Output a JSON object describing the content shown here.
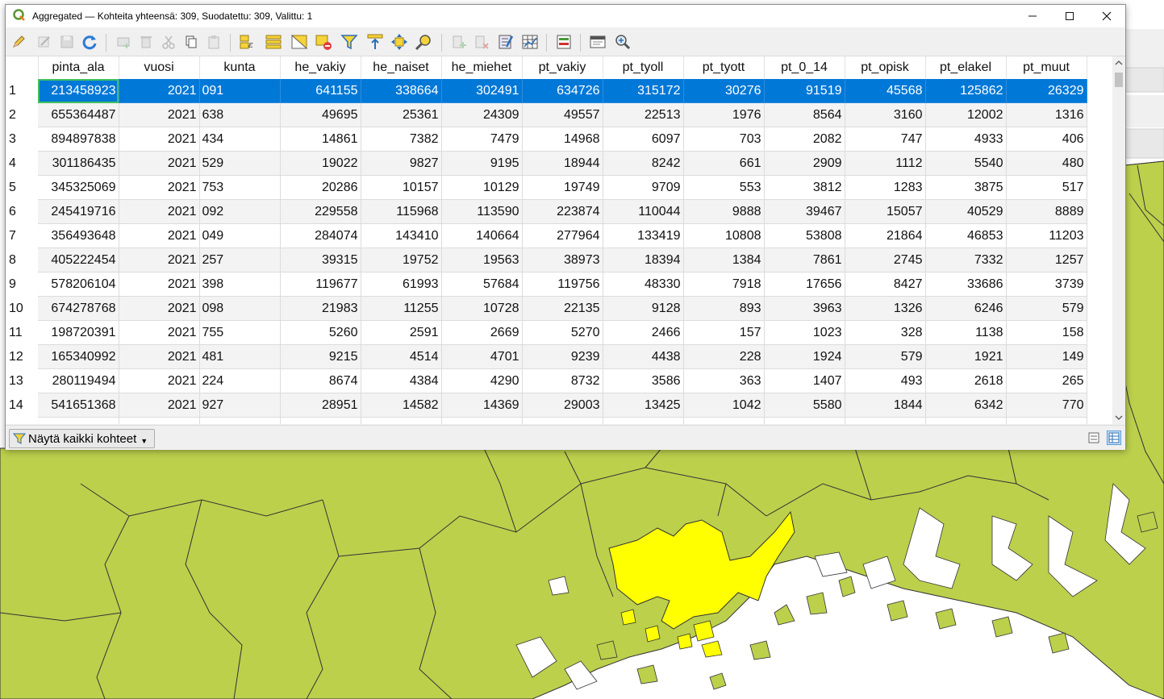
{
  "window": {
    "title": "Aggregated — Kohteita yhteensä: 309, Suodatettu: 309, Valittu: 1",
    "minimize_icon": "minimize-icon",
    "maximize_icon": "maximize-icon",
    "close_icon": "close-icon"
  },
  "toolbar": {
    "icons": [
      "pencil-edit-icon",
      "multi-edit-icon",
      "save-edits-icon",
      "reload-icon",
      "add-feature-icon",
      "delete-feature-icon",
      "cut-icon",
      "copy-icon",
      "paste-icon",
      "expression-select-icon",
      "select-all-icon",
      "invert-selection-icon",
      "deselect-icon",
      "filter-select-icon",
      "move-selection-top-icon",
      "pan-to-selected-icon",
      "zoom-to-selected-icon",
      "new-field-icon",
      "delete-field-icon",
      "field-calculator-icon",
      "conditional-format-icon",
      "actions-icon",
      "dock-icon",
      "zoom-icon"
    ]
  },
  "table": {
    "columns": [
      "pinta_ala",
      "vuosi",
      "kunta",
      "he_vakiy",
      "he_naiset",
      "he_miehet",
      "pt_vakiy",
      "pt_tyoll",
      "pt_tyott",
      "pt_0_14",
      "pt_opisk",
      "pt_elakel",
      "pt_muut"
    ],
    "rows": [
      {
        "id": "1",
        "cells": [
          "213458923",
          "2021",
          "091",
          "641155",
          "338664",
          "302491",
          "634726",
          "315172",
          "30276",
          "91519",
          "45568",
          "125862",
          "26329"
        ]
      },
      {
        "id": "2",
        "cells": [
          "655364487",
          "2021",
          "638",
          "49695",
          "25361",
          "24309",
          "49557",
          "22513",
          "1976",
          "8564",
          "3160",
          "12002",
          "1316"
        ]
      },
      {
        "id": "3",
        "cells": [
          "894897838",
          "2021",
          "434",
          "14861",
          "7382",
          "7479",
          "14968",
          "6097",
          "703",
          "2082",
          "747",
          "4933",
          "406"
        ]
      },
      {
        "id": "4",
        "cells": [
          "301186435",
          "2021",
          "529",
          "19022",
          "9827",
          "9195",
          "18944",
          "8242",
          "661",
          "2909",
          "1112",
          "5540",
          "480"
        ]
      },
      {
        "id": "5",
        "cells": [
          "345325069",
          "2021",
          "753",
          "20286",
          "10157",
          "10129",
          "19749",
          "9709",
          "553",
          "3812",
          "1283",
          "3875",
          "517"
        ]
      },
      {
        "id": "6",
        "cells": [
          "245419716",
          "2021",
          "092",
          "229558",
          "115968",
          "113590",
          "223874",
          "110044",
          "9888",
          "39467",
          "15057",
          "40529",
          "8889"
        ]
      },
      {
        "id": "7",
        "cells": [
          "356493648",
          "2021",
          "049",
          "284074",
          "143410",
          "140664",
          "277964",
          "133419",
          "10808",
          "53808",
          "21864",
          "46853",
          "11203"
        ]
      },
      {
        "id": "8",
        "cells": [
          "405222454",
          "2021",
          "257",
          "39315",
          "19752",
          "19563",
          "38973",
          "18394",
          "1384",
          "7861",
          "2745",
          "7332",
          "1257"
        ]
      },
      {
        "id": "9",
        "cells": [
          "578206104",
          "2021",
          "398",
          "119677",
          "61993",
          "57684",
          "119756",
          "48330",
          "7918",
          "17656",
          "8427",
          "33686",
          "3739"
        ]
      },
      {
        "id": "10",
        "cells": [
          "674278768",
          "2021",
          "098",
          "21983",
          "11255",
          "10728",
          "22135",
          "9128",
          "893",
          "3963",
          "1326",
          "6246",
          "579"
        ]
      },
      {
        "id": "11",
        "cells": [
          "198720391",
          "2021",
          "755",
          "5260",
          "2591",
          "2669",
          "5270",
          "2466",
          "157",
          "1023",
          "328",
          "1138",
          "158"
        ]
      },
      {
        "id": "12",
        "cells": [
          "165340992",
          "2021",
          "481",
          "9215",
          "4514",
          "4701",
          "9239",
          "4438",
          "228",
          "1924",
          "579",
          "1921",
          "149"
        ]
      },
      {
        "id": "13",
        "cells": [
          "280119494",
          "2021",
          "224",
          "8674",
          "4384",
          "4290",
          "8732",
          "3586",
          "363",
          "1407",
          "493",
          "2618",
          "265"
        ]
      },
      {
        "id": "14",
        "cells": [
          "541651368",
          "2021",
          "927",
          "28951",
          "14582",
          "14369",
          "29003",
          "13425",
          "1042",
          "5580",
          "1844",
          "6342",
          "770"
        ]
      }
    ],
    "selected_row": "1"
  },
  "bottom": {
    "filter_label": "Näytä kaikki kohteet",
    "form_view_icon": "form-view-icon",
    "table_view_icon": "table-view-icon"
  },
  "colors": {
    "selection": "#0078d7",
    "map_land": "#bcd04c",
    "map_highlight": "#ffff00",
    "map_border": "#333333"
  }
}
